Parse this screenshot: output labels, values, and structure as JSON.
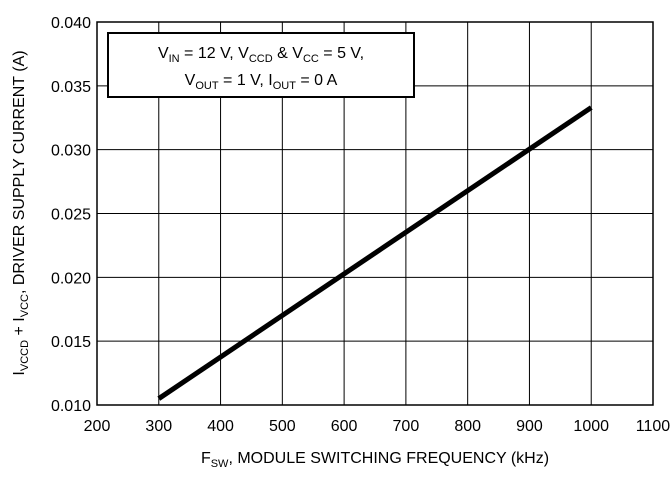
{
  "chart_data": {
    "type": "line",
    "annotation": [
      [
        "V",
        "IN",
        " = 12 V, V",
        "CCD",
        " & V",
        "CC",
        " = 5 V,"
      ],
      [
        "V",
        "OUT",
        " = 1 V, I",
        "OUT",
        " = 0 A"
      ]
    ],
    "xlabel": [
      "F",
      "SW",
      ", MODULE SWITCHING FREQUENCY (kHz)"
    ],
    "ylabel": [
      "I",
      "VCCD",
      " + I",
      "VCC",
      ", DRIVER SUPPLY CURRENT (A)"
    ],
    "x": [
      300,
      1000
    ],
    "series": [
      {
        "color": "#000000",
        "values": [
          0.0105,
          0.0333
        ]
      }
    ],
    "xlim": [
      200,
      1100
    ],
    "xticks": [
      200,
      300,
      400,
      500,
      600,
      700,
      800,
      900,
      1000,
      1100
    ],
    "ylim": [
      0.01,
      0.04
    ],
    "yticks": [
      {
        "value": 0.01,
        "label": "0.010"
      },
      0.015,
      {
        "value": 0.02,
        "label": "0.020"
      },
      0.025,
      {
        "value": 0.03,
        "label": "0.030"
      },
      0.035,
      {
        "value": 0.04,
        "label": "0.040"
      }
    ],
    "grid": true
  }
}
